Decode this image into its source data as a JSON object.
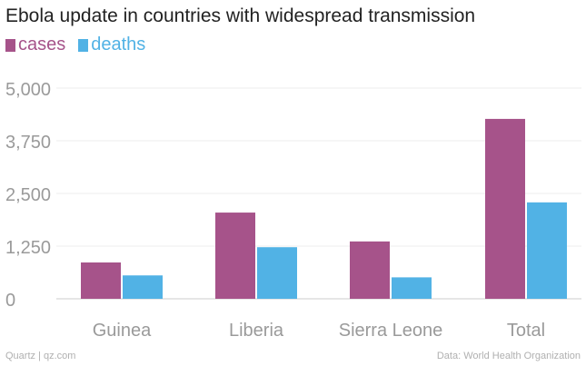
{
  "chart_data": {
    "type": "bar",
    "title": "Ebola update in countries with widespread transmission",
    "categories": [
      "Guinea",
      "Liberia",
      "Sierra Leone",
      "Total"
    ],
    "series": [
      {
        "name": "cases",
        "color": "#a6538a",
        "values": [
          862,
          2046,
          1361,
          4269
        ]
      },
      {
        "name": "deaths",
        "color": "#51b2e5",
        "values": [
          555,
          1224,
          509,
          2288
        ]
      }
    ],
    "yticks": [
      "5,000",
      "3,750",
      "2,500",
      "1,250",
      "0"
    ],
    "ylim": [
      0,
      5000
    ],
    "grid": true,
    "legend": "top-left",
    "xlabel": "",
    "ylabel": ""
  },
  "footer": {
    "source_left": "Quartz | qz.com",
    "source_right": "Data: World Health Organization"
  }
}
